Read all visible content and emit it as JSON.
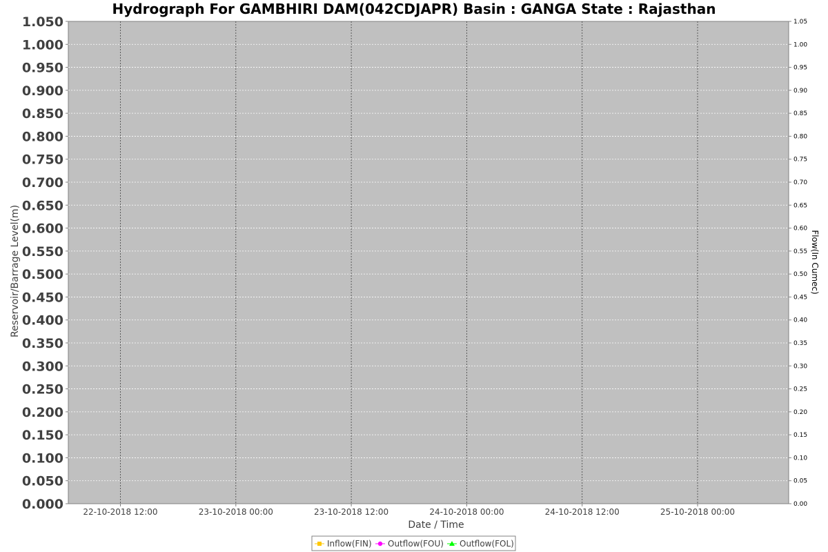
{
  "chart_data": {
    "type": "line",
    "title": "Hydrograph For GAMBHIRI DAM(042CDJAPR) Basin : GANGA State : Rajasthan",
    "xlabel": "Date / Time",
    "ylabel": "Reservoir/Barrage Level(m)",
    "y2label": "Flow(In Cumec)",
    "x_ticks": [
      "22-10-2018 12:00",
      "23-10-2018 00:00",
      "23-10-2018 12:00",
      "24-10-2018 00:00",
      "24-10-2018 12:00",
      "25-10-2018 00:00"
    ],
    "ylim": [
      0,
      1.05
    ],
    "y2lim": [
      0,
      1.05
    ],
    "y_ticks": [
      "0.000",
      "0.050",
      "0.100",
      "0.150",
      "0.200",
      "0.250",
      "0.300",
      "0.350",
      "0.400",
      "0.450",
      "0.500",
      "0.550",
      "0.600",
      "0.650",
      "0.700",
      "0.750",
      "0.800",
      "0.850",
      "0.900",
      "0.950",
      "1.000",
      "1.050"
    ],
    "y2_ticks": [
      "0.00",
      "0.05",
      "0.10",
      "0.15",
      "0.20",
      "0.25",
      "0.30",
      "0.35",
      "0.40",
      "0.45",
      "0.50",
      "0.55",
      "0.60",
      "0.65",
      "0.70",
      "0.75",
      "0.80",
      "0.85",
      "0.90",
      "0.95",
      "1.00",
      "1.05"
    ],
    "grid": true,
    "legend_position": "bottom",
    "series": [
      {
        "name": "Inflow(FIN)",
        "color": "#ffc800",
        "marker": "square",
        "values": []
      },
      {
        "name": "Outflow(FOU)",
        "color": "#ff00ff",
        "marker": "circle",
        "values": []
      },
      {
        "name": "Outflow(FOL)",
        "color": "#00ff00",
        "marker": "triangle",
        "values": []
      }
    ],
    "plot_background": "#c0c0c0"
  }
}
